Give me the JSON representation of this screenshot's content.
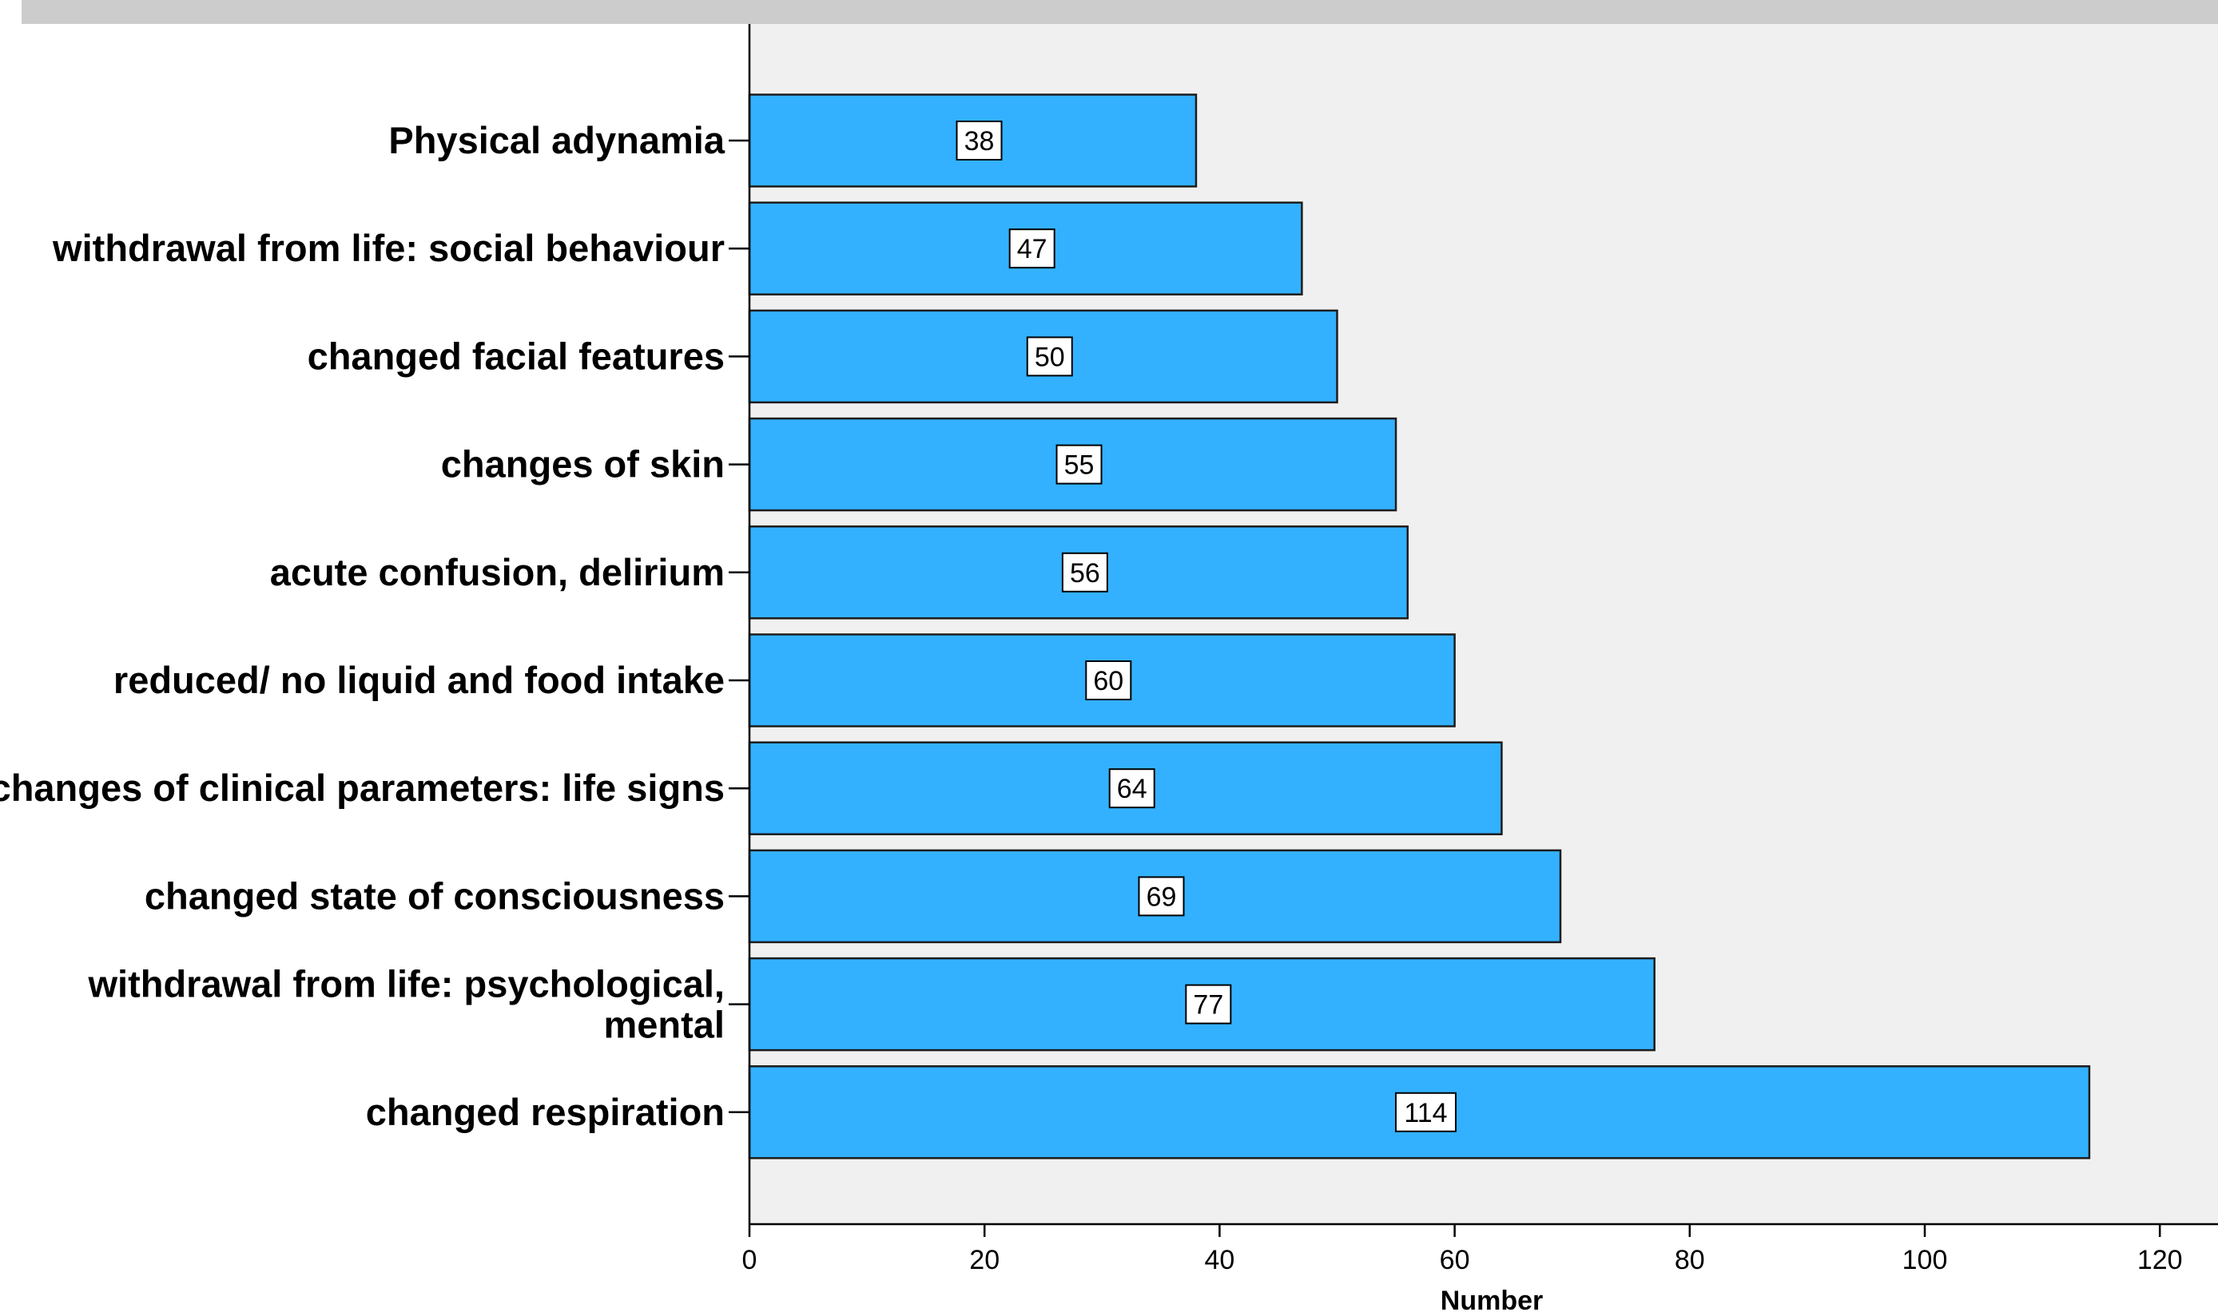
{
  "chart_data": {
    "type": "bar",
    "orientation": "horizontal",
    "categories": [
      "Physical adynamia",
      "withdrawal from life: social behaviour",
      "changed facial features",
      "changes of skin",
      "acute confusion, delirium",
      "reduced/ no liquid and food intake",
      "changes of clinical parameters: life signs",
      "changed state of consciousness",
      "withdrawal from life: psychological, mental",
      "changed respiration"
    ],
    "values": [
      38,
      47,
      50,
      55,
      56,
      60,
      64,
      69,
      77,
      114
    ],
    "data_labels": [
      "38",
      "47",
      "50",
      "55",
      "56",
      "60",
      "64",
      "69",
      "77",
      "114"
    ],
    "title": "",
    "xlabel": "Number",
    "ylabel": "",
    "xlim": [
      0,
      120
    ],
    "xticks": [
      0,
      20,
      40,
      60,
      80,
      100,
      120
    ],
    "tick_labels": [
      "0",
      "20",
      "40",
      "60",
      "80",
      "100",
      "120"
    ],
    "grid": false,
    "bar_color": "#33b1ff",
    "bar_edge_color": "#1c1c1c",
    "plot_background": "#f0f0f0",
    "header_band_color": "#cccccc"
  }
}
